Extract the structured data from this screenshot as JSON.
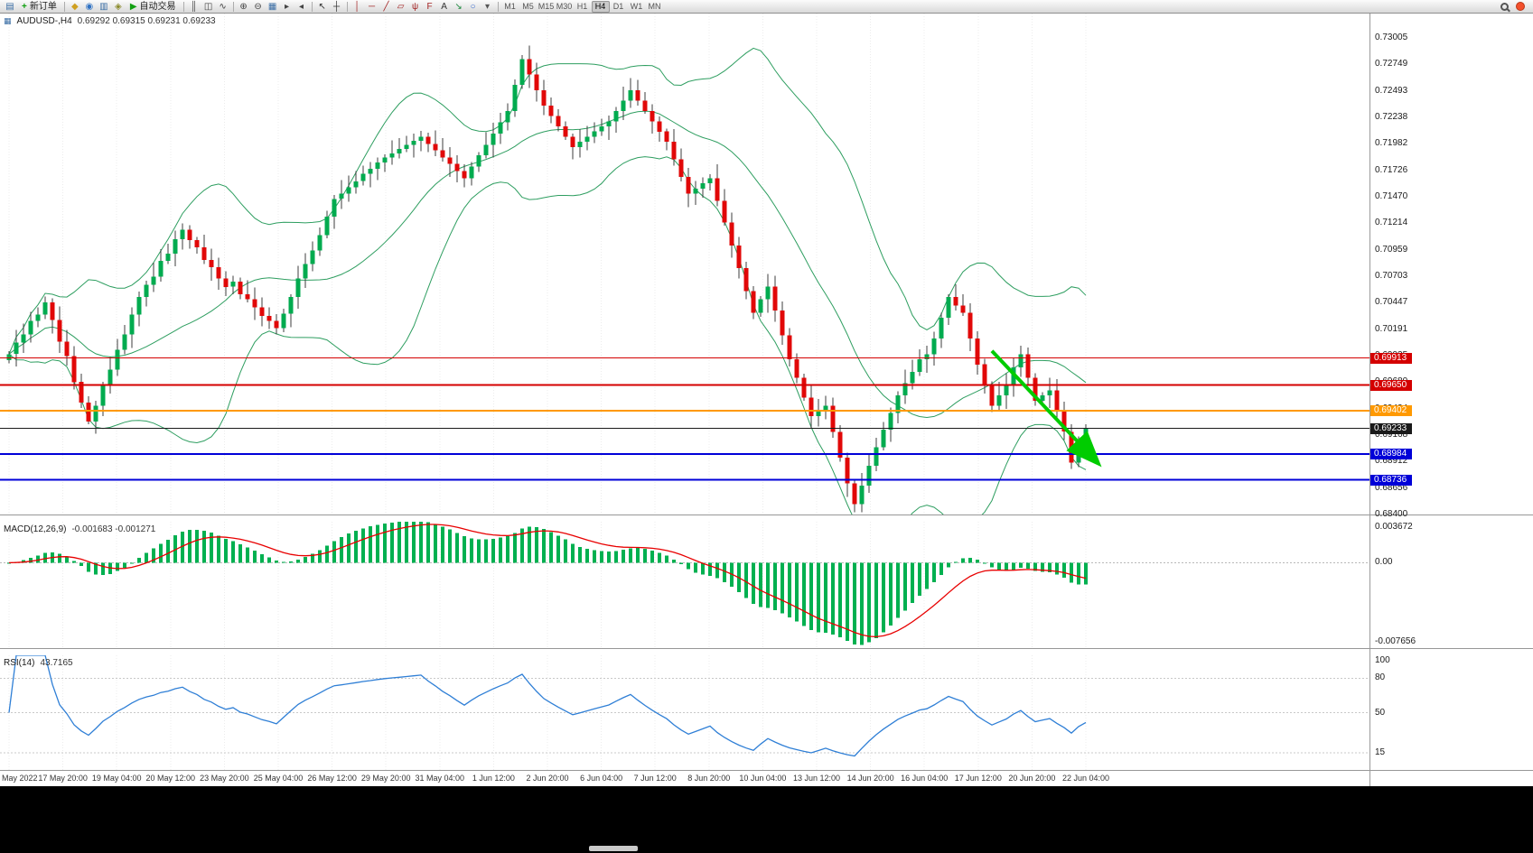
{
  "toolbar": {
    "items": [
      {
        "type": "icon",
        "name": "charts-icon",
        "glyph": "▤",
        "color": "#3b6ea5"
      },
      {
        "type": "labelbtn",
        "name": "new-order-button",
        "glyph": "+",
        "glyph_color": "#0b9e0b",
        "label": "新订单"
      },
      {
        "type": "sep"
      },
      {
        "type": "icon",
        "name": "chart-profile-icon",
        "glyph": "◆",
        "color": "#cf9f1f"
      },
      {
        "type": "icon",
        "name": "market-watch-icon",
        "glyph": "◉",
        "color": "#2f72c4"
      },
      {
        "type": "icon",
        "name": "data-window-icon",
        "glyph": "▥",
        "color": "#3b6ea5"
      },
      {
        "type": "icon",
        "name": "navigator-icon",
        "glyph": "◈",
        "color": "#8a8a2a"
      },
      {
        "type": "labelbtn",
        "name": "autotrading-button",
        "glyph": "▶",
        "glyph_color": "#12a012",
        "label": "自动交易"
      },
      {
        "type": "sep"
      },
      {
        "type": "icon",
        "name": "bar-chart-icon",
        "glyph": "║",
        "color": "#444"
      },
      {
        "type": "icon",
        "name": "candlestick-chart-icon",
        "glyph": "◫",
        "color": "#444"
      },
      {
        "type": "icon",
        "name": "line-chart-icon",
        "glyph": "∿",
        "color": "#444"
      },
      {
        "type": "sep"
      },
      {
        "type": "icon",
        "name": "zoom-in-icon",
        "glyph": "⊕",
        "color": "#444"
      },
      {
        "type": "icon",
        "name": "zoom-out-icon",
        "glyph": "⊖",
        "color": "#444"
      },
      {
        "type": "icon",
        "name": "tile-windows-icon",
        "glyph": "▦",
        "color": "#3b6ea5"
      },
      {
        "type": "icon",
        "name": "auto-scroll-icon",
        "glyph": "▸",
        "color": "#444"
      },
      {
        "type": "icon",
        "name": "chart-shift-icon",
        "glyph": "◂",
        "color": "#444"
      },
      {
        "type": "sep"
      },
      {
        "type": "icon",
        "name": "cursor-icon",
        "glyph": "↖",
        "color": "#333"
      },
      {
        "type": "icon",
        "name": "crosshair-icon",
        "glyph": "┼",
        "color": "#333"
      },
      {
        "type": "sep"
      },
      {
        "type": "icon",
        "name": "vertical-line-icon",
        "glyph": "│",
        "color": "#a22222"
      },
      {
        "type": "icon",
        "name": "horizontal-line-icon",
        "glyph": "─",
        "color": "#a22222"
      },
      {
        "type": "icon",
        "name": "trendline-icon",
        "glyph": "╱",
        "color": "#a22222"
      },
      {
        "type": "icon",
        "name": "equidistant-channel-icon",
        "glyph": "▱",
        "color": "#a22222"
      },
      {
        "type": "icon",
        "name": "andrews-pitchfork-icon",
        "glyph": "ψ",
        "color": "#a22222"
      },
      {
        "type": "icon",
        "name": "fibonacci-icon",
        "glyph": "F",
        "color": "#a22222"
      },
      {
        "type": "icon",
        "name": "text-tool-icon",
        "glyph": "A",
        "color": "#333"
      },
      {
        "type": "icon",
        "name": "arrows-tool-icon",
        "glyph": "↘",
        "color": "#1f8a3f"
      },
      {
        "type": "icon",
        "name": "shapes-tool-icon",
        "glyph": "○",
        "color": "#3366cc"
      },
      {
        "type": "icon",
        "name": "tools-dropdown-icon",
        "glyph": "▾",
        "color": "#555"
      },
      {
        "type": "sep"
      },
      {
        "type": "tf",
        "label": "M1"
      },
      {
        "type": "tf",
        "label": "M5"
      },
      {
        "type": "tf",
        "label": "M15"
      },
      {
        "type": "tf",
        "label": "M30"
      },
      {
        "type": "tf",
        "label": "H1"
      },
      {
        "type": "tf",
        "label": "H4",
        "active": true
      },
      {
        "type": "tf",
        "label": "D1"
      },
      {
        "type": "tf",
        "label": "W1"
      },
      {
        "type": "tf",
        "label": "MN"
      },
      {
        "type": "spacer"
      },
      {
        "type": "search"
      },
      {
        "type": "badge"
      }
    ]
  },
  "chart_header": {
    "symbol_period": "AUDUSD-,H4",
    "ohlc": "0.69292 0.69315 0.69231 0.69233"
  },
  "levels": [
    {
      "label": "0.69913",
      "value": 0.69913,
      "color": "#d40000",
      "width": 1,
      "kind": "resistance-line-1"
    },
    {
      "label": "0.69650",
      "value": 0.6965,
      "color": "#d40000",
      "width": 2,
      "kind": "resistance-line-2"
    },
    {
      "label": "0.69402",
      "value": 0.69402,
      "color": "#ff9900",
      "width": 2,
      "kind": "pivot-line"
    },
    {
      "label": "0.69233",
      "value": 0.69233,
      "color": "#1a1a1a",
      "width": 1,
      "kind": "current-price-line"
    },
    {
      "label": "0.68984",
      "value": 0.68984,
      "color": "#0000d8",
      "width": 2,
      "kind": "support-line-1"
    },
    {
      "label": "0.68736",
      "value": 0.68736,
      "color": "#0000d8",
      "width": 2,
      "kind": "support-line-2"
    }
  ],
  "chart_data": {
    "type": "candlestick",
    "symbol": "AUDUSD",
    "period": "H4",
    "last_price": 0.69233,
    "y_axis": {
      "top_price": 0.7324,
      "bottom_price": 0.684,
      "tick_labels": [
        "0.73005",
        "0.72749",
        "0.72493",
        "0.72238",
        "0.71982",
        "0.71726",
        "0.71470",
        "0.71214",
        "0.70959",
        "0.70703",
        "0.70447",
        "0.70191",
        "0.69935",
        "0.69680",
        "0.69424",
        "0.69168",
        "0.68912",
        "0.68656",
        "0.68400"
      ]
    },
    "x_labels": [
      "May 2022",
      "17 May 20:00",
      "19 May 04:00",
      "20 May 12:00",
      "23 May 20:00",
      "25 May 04:00",
      "26 May 12:00",
      "29 May 20:00",
      "31 May 04:00",
      "1 Jun 12:00",
      "2 Jun 20:00",
      "6 Jun 04:00",
      "7 Jun 12:00",
      "8 Jun 20:00",
      "10 Jun 04:00",
      "13 Jun 12:00",
      "14 Jun 20:00",
      "16 Jun 04:00",
      "17 Jun 12:00",
      "20 Jun 20:00",
      "22 Jun 04:00"
    ],
    "closes": [
      0.6995,
      0.7006,
      0.7014,
      0.7027,
      0.7033,
      0.7045,
      0.7028,
      0.7007,
      0.6993,
      0.6968,
      0.6948,
      0.693,
      0.6945,
      0.6965,
      0.698,
      0.6999,
      0.7014,
      0.7033,
      0.705,
      0.7062,
      0.707,
      0.7085,
      0.7092,
      0.7106,
      0.7115,
      0.7105,
      0.7098,
      0.7086,
      0.7079,
      0.7068,
      0.706,
      0.7065,
      0.7053,
      0.7048,
      0.704,
      0.7032,
      0.7027,
      0.702,
      0.7034,
      0.705,
      0.7068,
      0.7082,
      0.7095,
      0.711,
      0.7128,
      0.7145,
      0.715,
      0.7156,
      0.7162,
      0.7169,
      0.7174,
      0.718,
      0.7185,
      0.7189,
      0.7193,
      0.7197,
      0.7201,
      0.7205,
      0.7198,
      0.7192,
      0.7185,
      0.7179,
      0.7172,
      0.7165,
      0.7176,
      0.7187,
      0.7197,
      0.7208,
      0.7219,
      0.723,
      0.7255,
      0.728,
      0.7265,
      0.725,
      0.7235,
      0.7225,
      0.7215,
      0.7205,
      0.7195,
      0.72,
      0.7205,
      0.721,
      0.7215,
      0.722,
      0.723,
      0.724,
      0.725,
      0.724,
      0.723,
      0.722,
      0.721,
      0.72,
      0.7183,
      0.7166,
      0.715,
      0.7155,
      0.716,
      0.7165,
      0.7143,
      0.7122,
      0.71,
      0.7078,
      0.7056,
      0.7035,
      0.7048,
      0.706,
      0.7037,
      0.7013,
      0.699,
      0.6972,
      0.6953,
      0.6935,
      0.694,
      0.6945,
      0.692,
      0.6895,
      0.687,
      0.685,
      0.6868,
      0.6887,
      0.6905,
      0.6922,
      0.6938,
      0.6955,
      0.6967,
      0.6978,
      0.699,
      0.6995,
      0.701,
      0.703,
      0.705,
      0.7042,
      0.7035,
      0.701,
      0.6985,
      0.6965,
      0.6945,
      0.6955,
      0.6965,
      0.6982,
      0.6995,
      0.6972,
      0.695,
      0.6955,
      0.696,
      0.694,
      0.692,
      0.689,
      0.691,
      0.69233
    ],
    "candle_colors": {
      "up": "#00ab4f",
      "down": "#e10808",
      "wick": "#3c3c3c"
    },
    "bollinger": {
      "period": 20,
      "deviation": 2,
      "color": "#2e9e60"
    },
    "indicators": {
      "macd": {
        "label": "MACD(12,26,9)",
        "values": "-0.001683 -0.001271",
        "scale_top": 0.003672,
        "scale_bottom": -0.007656,
        "scale_labels": [
          "0.003672",
          "0.00",
          "-0.007656"
        ],
        "scale_values": [
          0.003672,
          0,
          -0.007656
        ],
        "histogram_color": "#00b050",
        "signal_color": "#e80000"
      },
      "rsi": {
        "label": "RSI(14)",
        "value": "43.7165",
        "color": "#2f7fd6",
        "levels": [
          80,
          50,
          15
        ],
        "scale_labels": [
          "100",
          "80",
          "50",
          "15"
        ],
        "scale_values": [
          100,
          80,
          50,
          15
        ]
      }
    },
    "trend_arrow": {
      "from_index": 136,
      "from_price": 0.6998,
      "to_index": 150.5,
      "to_price": 0.6891,
      "color": "#00cc00",
      "width": 4
    }
  }
}
